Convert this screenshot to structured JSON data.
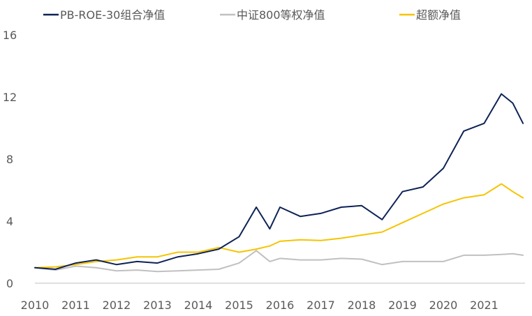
{
  "chart_data": {
    "type": "line",
    "title": "",
    "xlabel": "",
    "ylabel": "",
    "xlim": [
      2010,
      2022
    ],
    "ylim": [
      0,
      16
    ],
    "yticks": [
      0,
      4,
      8,
      12,
      16
    ],
    "xticks": [
      "2010",
      "2011",
      "2012",
      "2013",
      "2014",
      "2015",
      "2016",
      "2017",
      "2018",
      "2019",
      "2020",
      "2021"
    ],
    "grid": false,
    "legend_position": "top",
    "x": [
      2010.0,
      2010.5,
      2011.0,
      2011.5,
      2012.0,
      2012.5,
      2013.0,
      2013.5,
      2014.0,
      2014.5,
      2015.0,
      2015.42,
      2015.75,
      2016.0,
      2016.5,
      2017.0,
      2017.5,
      2018.0,
      2018.5,
      2019.0,
      2019.5,
      2020.0,
      2020.5,
      2021.0,
      2021.42,
      2021.7,
      2021.95
    ],
    "series": [
      {
        "name": "PB-ROE-30组合净值",
        "color": "#0d2255",
        "values": [
          1.0,
          0.9,
          1.3,
          1.5,
          1.2,
          1.4,
          1.3,
          1.7,
          1.9,
          2.2,
          3.0,
          4.9,
          3.5,
          4.9,
          4.3,
          4.5,
          4.9,
          5.0,
          4.1,
          5.9,
          6.2,
          7.4,
          9.8,
          10.3,
          12.2,
          11.6,
          10.3
        ]
      },
      {
        "name": "中证800等权净值",
        "color": "#c0c0c0",
        "values": [
          1.0,
          0.85,
          1.1,
          1.0,
          0.8,
          0.85,
          0.75,
          0.8,
          0.85,
          0.9,
          1.3,
          2.1,
          1.4,
          1.6,
          1.5,
          1.5,
          1.6,
          1.55,
          1.2,
          1.4,
          1.4,
          1.4,
          1.8,
          1.8,
          1.85,
          1.9,
          1.8
        ]
      },
      {
        "name": "超额净值",
        "color": "#f5c400",
        "values": [
          1.0,
          1.05,
          1.2,
          1.4,
          1.5,
          1.7,
          1.7,
          2.0,
          2.0,
          2.3,
          2.0,
          2.2,
          2.4,
          2.7,
          2.8,
          2.75,
          2.9,
          3.1,
          3.3,
          3.9,
          4.5,
          5.1,
          5.5,
          5.7,
          6.4,
          5.9,
          5.5
        ]
      }
    ]
  }
}
